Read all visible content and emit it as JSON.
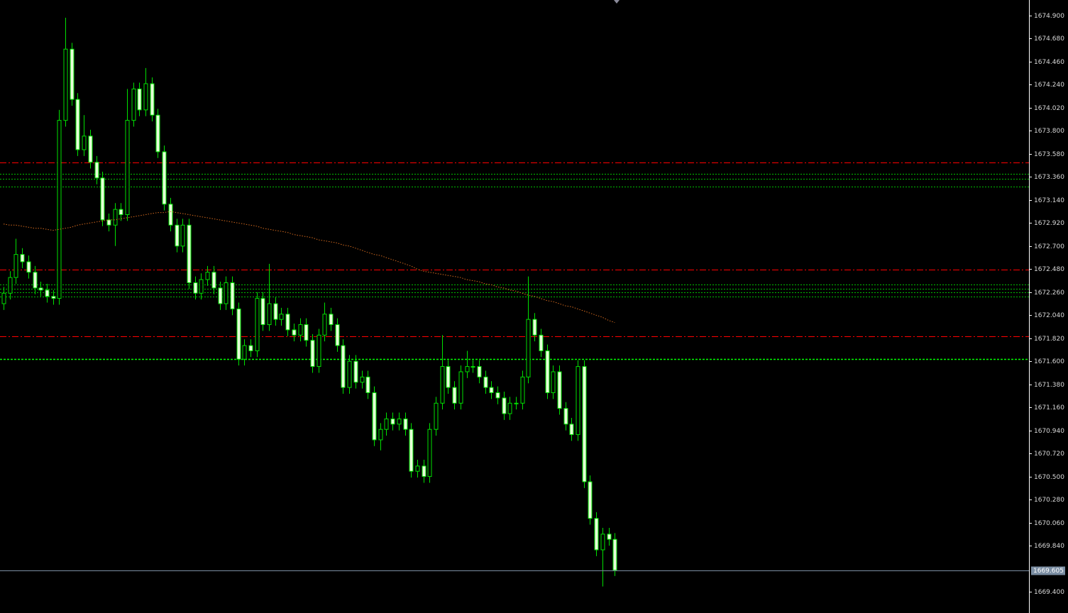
{
  "chart_data": {
    "type": "candlestick",
    "open": [
      1672.15,
      1672.25,
      1672.4,
      1672.62,
      1672.55,
      1672.45,
      1672.3,
      1672.28,
      1672.22,
      1672.2,
      1673.9,
      1674.58,
      1674.1,
      1673.62,
      1673.75,
      1673.5,
      1673.35,
      1672.95,
      1672.9,
      1673.05,
      1673.0,
      1673.9,
      1674.2,
      1674.0,
      1674.25,
      1673.95,
      1673.6,
      1673.1,
      1672.9,
      1672.7,
      1672.9,
      1672.35,
      1672.25,
      1672.38,
      1672.45,
      1672.3,
      1672.15,
      1672.35,
      1672.1,
      1671.62,
      1671.75,
      1671.7,
      1672.2,
      1671.95,
      1672.15,
      1672.0,
      1672.05,
      1671.9,
      1671.85,
      1671.95,
      1671.8,
      1671.55,
      1671.85,
      1672.05,
      1671.95,
      1671.75,
      1671.35,
      1671.6,
      1671.4,
      1671.45,
      1671.3,
      1670.85,
      1670.95,
      1671.05,
      1671.0,
      1671.05,
      1670.95,
      1670.55,
      1670.6,
      1670.5,
      1670.95,
      1671.2,
      1671.55,
      1671.35,
      1671.2,
      1671.5,
      1671.55,
      1671.55,
      1671.45,
      1671.35,
      1671.3,
      1671.25,
      1671.1,
      1671.2,
      1671.2,
      1671.45,
      1672.0,
      1671.85,
      1671.7,
      1671.3,
      1671.5,
      1671.15,
      1671.0,
      1670.9,
      1671.55,
      1670.45,
      1670.1,
      1669.8,
      1669.95,
      1669.9
    ],
    "high": [
      1672.31,
      1672.46,
      1672.77,
      1672.68,
      1672.61,
      1672.51,
      1672.36,
      1672.34,
      1672.28,
      1674.0,
      1674.88,
      1674.64,
      1674.16,
      1673.95,
      1673.81,
      1673.56,
      1673.41,
      1673.01,
      1673.11,
      1673.11,
      1674.2,
      1674.26,
      1674.26,
      1674.4,
      1674.31,
      1674.01,
      1673.66,
      1673.16,
      1672.96,
      1672.96,
      1672.96,
      1672.41,
      1672.44,
      1672.51,
      1672.51,
      1672.36,
      1672.41,
      1672.41,
      1672.16,
      1671.81,
      1671.81,
      1672.26,
      1672.26,
      1672.53,
      1672.21,
      1672.11,
      1672.11,
      1671.96,
      1672.01,
      1672.01,
      1671.86,
      1671.91,
      1672.16,
      1672.11,
      1672.01,
      1671.81,
      1671.66,
      1671.66,
      1671.51,
      1671.51,
      1671.36,
      1671.01,
      1671.11,
      1671.11,
      1671.11,
      1671.11,
      1671.01,
      1670.66,
      1670.66,
      1671.01,
      1671.26,
      1671.85,
      1671.61,
      1671.41,
      1671.56,
      1671.7,
      1671.61,
      1671.61,
      1671.51,
      1671.41,
      1671.36,
      1671.31,
      1671.26,
      1671.26,
      1671.51,
      1672.41,
      1672.06,
      1671.91,
      1671.76,
      1671.56,
      1671.56,
      1671.21,
      1671.06,
      1671.61,
      1671.61,
      1670.51,
      1670.16,
      1670.01,
      1670.01,
      1669.96
    ],
    "low": [
      1672.09,
      1672.19,
      1672.34,
      1672.49,
      1672.39,
      1672.24,
      1672.22,
      1672.16,
      1672.14,
      1672.14,
      1673.84,
      1674.04,
      1673.56,
      1673.56,
      1673.44,
      1673.29,
      1672.89,
      1672.84,
      1672.7,
      1672.94,
      1672.94,
      1673.84,
      1673.94,
      1673.94,
      1673.89,
      1673.54,
      1673.04,
      1672.84,
      1672.64,
      1672.64,
      1672.29,
      1672.19,
      1672.19,
      1672.32,
      1672.24,
      1672.09,
      1672.09,
      1672.04,
      1671.56,
      1671.56,
      1671.64,
      1671.64,
      1671.89,
      1671.89,
      1671.94,
      1671.94,
      1671.84,
      1671.79,
      1671.79,
      1671.74,
      1671.49,
      1671.49,
      1671.79,
      1671.89,
      1671.69,
      1671.29,
      1671.29,
      1671.34,
      1671.34,
      1671.24,
      1670.79,
      1670.75,
      1670.89,
      1670.94,
      1670.94,
      1670.89,
      1670.49,
      1670.49,
      1670.44,
      1670.44,
      1670.89,
      1671.14,
      1671.29,
      1671.14,
      1671.14,
      1671.44,
      1671.49,
      1671.39,
      1671.29,
      1671.24,
      1671.19,
      1671.04,
      1671.04,
      1671.14,
      1671.14,
      1671.39,
      1671.79,
      1671.64,
      1671.24,
      1671.24,
      1671.09,
      1670.94,
      1670.84,
      1670.84,
      1670.39,
      1670.04,
      1669.74,
      1669.45,
      1669.84,
      1669.55
    ],
    "close": [
      1672.25,
      1672.4,
      1672.62,
      1672.55,
      1672.45,
      1672.3,
      1672.28,
      1672.22,
      1672.2,
      1673.9,
      1674.58,
      1674.1,
      1673.62,
      1673.75,
      1673.5,
      1673.35,
      1672.95,
      1672.9,
      1673.05,
      1673.0,
      1673.9,
      1674.2,
      1674.0,
      1674.25,
      1673.95,
      1673.6,
      1673.1,
      1672.9,
      1672.7,
      1672.9,
      1672.35,
      1672.25,
      1672.38,
      1672.45,
      1672.3,
      1672.15,
      1672.35,
      1672.1,
      1671.62,
      1671.75,
      1671.7,
      1672.2,
      1671.95,
      1672.15,
      1672.0,
      1672.05,
      1671.9,
      1671.85,
      1671.95,
      1671.8,
      1671.55,
      1671.85,
      1672.05,
      1671.95,
      1671.75,
      1671.35,
      1671.6,
      1671.4,
      1671.45,
      1671.3,
      1670.85,
      1670.95,
      1671.05,
      1671.0,
      1671.05,
      1670.95,
      1670.55,
      1670.6,
      1670.5,
      1670.95,
      1671.2,
      1671.55,
      1671.35,
      1671.2,
      1671.5,
      1671.55,
      1671.55,
      1671.45,
      1671.35,
      1671.3,
      1671.25,
      1671.1,
      1671.2,
      1671.2,
      1671.45,
      1672.0,
      1671.85,
      1671.7,
      1671.3,
      1671.5,
      1671.15,
      1671.0,
      1670.9,
      1671.55,
      1670.45,
      1670.1,
      1669.8,
      1669.95,
      1669.9,
      1669.605
    ],
    "ma": {
      "color": "#d2691e",
      "values": [
        1672.91,
        1672.9,
        1672.9,
        1672.89,
        1672.88,
        1672.87,
        1672.87,
        1672.86,
        1672.85,
        1672.86,
        1672.87,
        1672.88,
        1672.9,
        1672.91,
        1672.92,
        1672.93,
        1672.94,
        1672.95,
        1672.95,
        1672.96,
        1672.97,
        1672.98,
        1672.99,
        1673.0,
        1673.01,
        1673.02,
        1673.02,
        1673.03,
        1673.02,
        1673.01,
        1673.0,
        1672.99,
        1672.98,
        1672.97,
        1672.96,
        1672.95,
        1672.94,
        1672.93,
        1672.92,
        1672.91,
        1672.9,
        1672.89,
        1672.87,
        1672.86,
        1672.85,
        1672.84,
        1672.83,
        1672.81,
        1672.8,
        1672.79,
        1672.78,
        1672.76,
        1672.75,
        1672.74,
        1672.73,
        1672.71,
        1672.7,
        1672.68,
        1672.66,
        1672.64,
        1672.62,
        1672.61,
        1672.59,
        1672.57,
        1672.55,
        1672.53,
        1672.51,
        1672.48,
        1672.46,
        1672.45,
        1672.44,
        1672.43,
        1672.42,
        1672.41,
        1672.4,
        1672.38,
        1672.37,
        1672.36,
        1672.34,
        1672.33,
        1672.31,
        1672.3,
        1672.28,
        1672.27,
        1672.25,
        1672.23,
        1672.22,
        1672.2,
        1672.18,
        1672.17,
        1672.15,
        1672.13,
        1672.12,
        1672.1,
        1672.08,
        1672.06,
        1672.04,
        1672.02,
        1671.99,
        1671.97
      ]
    },
    "ylim": [
      1669.197,
      1675.049
    ],
    "yticks": [
      {
        "value": 1669.4,
        "label": "1669.400"
      },
      {
        "value": 1669.84,
        "label": "1669.840"
      },
      {
        "value": 1670.06,
        "label": "1670.060"
      },
      {
        "value": 1670.28,
        "label": "1670.280"
      },
      {
        "value": 1670.5,
        "label": "1670.500"
      },
      {
        "value": 1670.72,
        "label": "1670.720"
      },
      {
        "value": 1670.94,
        "label": "1670.940"
      },
      {
        "value": 1671.16,
        "label": "1671.160"
      },
      {
        "value": 1671.38,
        "label": "1671.380"
      },
      {
        "value": 1671.6,
        "label": "1671.600"
      },
      {
        "value": 1671.82,
        "label": "1671.820"
      },
      {
        "value": 1672.04,
        "label": "1672.040"
      },
      {
        "value": 1672.26,
        "label": "1672.260"
      },
      {
        "value": 1672.48,
        "label": "1672.480"
      },
      {
        "value": 1672.7,
        "label": "1672.700"
      },
      {
        "value": 1672.92,
        "label": "1672.920"
      },
      {
        "value": 1673.14,
        "label": "1673.140"
      },
      {
        "value": 1673.36,
        "label": "1673.360"
      },
      {
        "value": 1673.58,
        "label": "1673.580"
      },
      {
        "value": 1673.8,
        "label": "1673.800"
      },
      {
        "value": 1674.02,
        "label": "1674.020"
      },
      {
        "value": 1674.24,
        "label": "1674.240"
      },
      {
        "value": 1674.46,
        "label": "1674.460"
      },
      {
        "value": 1674.68,
        "label": "1674.680"
      },
      {
        "value": 1674.9,
        "label": "1674.900"
      }
    ],
    "levels": [
      {
        "value": 1673.5,
        "color": "#ff0000",
        "style": "dash-dot"
      },
      {
        "value": 1673.39,
        "color": "#00c000",
        "style": "dot"
      },
      {
        "value": 1673.34,
        "color": "#00c000",
        "style": "dot"
      },
      {
        "value": 1673.27,
        "color": "#00c000",
        "style": "dot"
      },
      {
        "value": 1672.475,
        "color": "#ff0000",
        "style": "dash-dot"
      },
      {
        "value": 1672.33,
        "color": "#00c000",
        "style": "dot"
      },
      {
        "value": 1672.29,
        "color": "#00c000",
        "style": "dot"
      },
      {
        "value": 1672.26,
        "color": "#00c000",
        "style": "dot"
      },
      {
        "value": 1672.22,
        "color": "#00c000",
        "style": "dot"
      },
      {
        "value": 1671.84,
        "color": "#ff0000",
        "style": "dash-dot"
      },
      {
        "value": 1671.62,
        "color": "#00ff00",
        "style": "bold-dot"
      }
    ],
    "current_price": {
      "value": 1669.605,
      "label": "1669.605",
      "color": "#7b8ea3"
    },
    "colors": {
      "wick": "#00e000",
      "bull_body": "#000000",
      "bear_body": "#e6ffd8",
      "outline": "#00e000"
    }
  }
}
